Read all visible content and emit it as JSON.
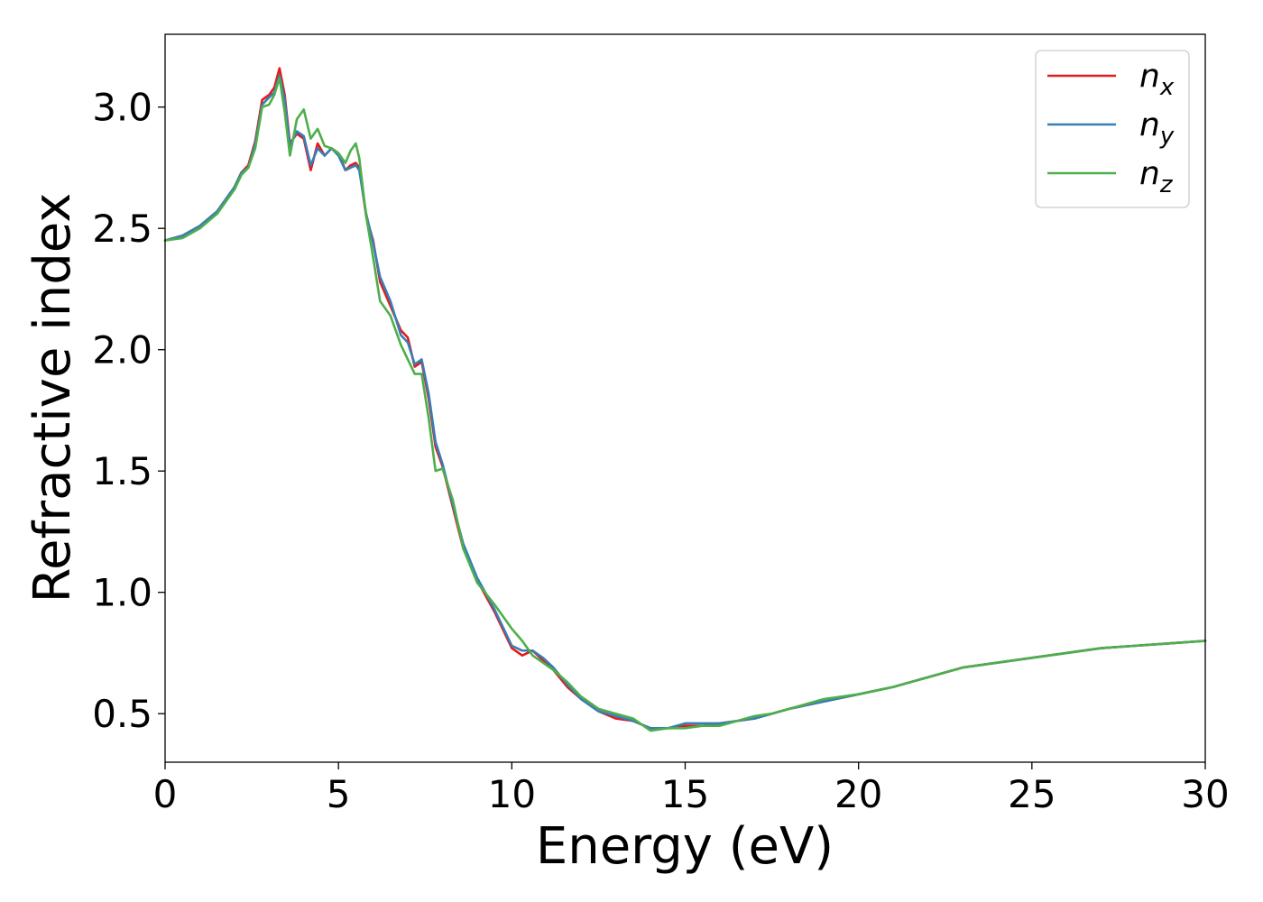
{
  "chart_data": {
    "type": "line",
    "title": "",
    "xlabel": "Energy (eV)",
    "ylabel": "Refractive index",
    "xlim": [
      0,
      30
    ],
    "ylim": [
      0.3,
      3.3
    ],
    "xticks": [
      "0",
      "5",
      "10",
      "15",
      "20",
      "25",
      "30"
    ],
    "yticks": [
      "0.5",
      "1.0",
      "1.5",
      "2.0",
      "2.5",
      "3.0"
    ],
    "grid": false,
    "legend_position": "top-right",
    "series": [
      {
        "name": "n_x",
        "label_main": "n",
        "label_sub": "x",
        "color": "#e41a1c",
        "x": [
          0,
          0.5,
          1,
          1.5,
          2,
          2.2,
          2.4,
          2.6,
          2.8,
          3.0,
          3.15,
          3.3,
          3.45,
          3.6,
          3.8,
          4.0,
          4.2,
          4.4,
          4.6,
          4.8,
          5.0,
          5.2,
          5.35,
          5.5,
          5.6,
          5.8,
          6.0,
          6.2,
          6.5,
          6.8,
          7.0,
          7.2,
          7.4,
          7.6,
          7.8,
          8.0,
          8.3,
          8.6,
          9.0,
          9.5,
          10.0,
          10.3,
          10.6,
          10.9,
          11.2,
          11.6,
          12.0,
          12.5,
          13.0,
          13.5,
          14.0,
          14.5,
          15.0,
          15.5,
          16.0,
          16.5,
          17.0,
          17.5,
          18.0,
          19.0,
          20.0,
          21.0,
          22.0,
          23.0,
          24.0,
          25.0,
          26.0,
          27.0,
          28.0,
          29.0,
          30.0
        ],
        "y": [
          2.45,
          2.47,
          2.51,
          2.57,
          2.67,
          2.73,
          2.76,
          2.86,
          3.03,
          3.05,
          3.08,
          3.16,
          3.05,
          2.85,
          2.89,
          2.87,
          2.74,
          2.85,
          2.8,
          2.83,
          2.81,
          2.74,
          2.76,
          2.77,
          2.75,
          2.55,
          2.45,
          2.28,
          2.18,
          2.08,
          2.05,
          1.93,
          1.95,
          1.8,
          1.6,
          1.52,
          1.35,
          1.18,
          1.05,
          0.92,
          0.77,
          0.74,
          0.76,
          0.72,
          0.68,
          0.61,
          0.56,
          0.51,
          0.48,
          0.47,
          0.44,
          0.44,
          0.45,
          0.45,
          0.46,
          0.47,
          0.48,
          0.5,
          0.52,
          0.55,
          0.58,
          0.61,
          0.65,
          0.69,
          0.71,
          0.73,
          0.75,
          0.77,
          0.78,
          0.79,
          0.8
        ]
      },
      {
        "name": "n_y",
        "label_main": "n",
        "label_sub": "y",
        "color": "#377eb8",
        "x": [
          0,
          0.5,
          1,
          1.5,
          2,
          2.2,
          2.4,
          2.6,
          2.8,
          3.0,
          3.15,
          3.3,
          3.45,
          3.6,
          3.8,
          4.0,
          4.2,
          4.4,
          4.6,
          4.8,
          5.0,
          5.2,
          5.35,
          5.5,
          5.6,
          5.8,
          6.0,
          6.2,
          6.5,
          6.8,
          7.0,
          7.2,
          7.4,
          7.6,
          7.8,
          8.0,
          8.3,
          8.6,
          9.0,
          9.5,
          10.0,
          10.3,
          10.6,
          10.9,
          11.2,
          11.6,
          12.0,
          12.5,
          13.0,
          13.5,
          14.0,
          14.5,
          15.0,
          15.5,
          16.0,
          16.5,
          17.0,
          17.5,
          18.0,
          19.0,
          20.0,
          21.0,
          22.0,
          23.0,
          24.0,
          25.0,
          26.0,
          27.0,
          28.0,
          29.0,
          30.0
        ],
        "y": [
          2.45,
          2.47,
          2.51,
          2.57,
          2.67,
          2.73,
          2.75,
          2.85,
          3.01,
          3.04,
          3.06,
          3.13,
          3.03,
          2.84,
          2.9,
          2.88,
          2.76,
          2.83,
          2.8,
          2.83,
          2.8,
          2.74,
          2.75,
          2.76,
          2.74,
          2.56,
          2.44,
          2.3,
          2.2,
          2.06,
          2.03,
          1.94,
          1.96,
          1.82,
          1.62,
          1.53,
          1.36,
          1.2,
          1.06,
          0.93,
          0.78,
          0.76,
          0.76,
          0.73,
          0.69,
          0.62,
          0.56,
          0.51,
          0.49,
          0.47,
          0.44,
          0.44,
          0.46,
          0.46,
          0.46,
          0.47,
          0.48,
          0.5,
          0.52,
          0.55,
          0.58,
          0.61,
          0.65,
          0.69,
          0.71,
          0.73,
          0.75,
          0.77,
          0.78,
          0.79,
          0.8
        ]
      },
      {
        "name": "n_z",
        "label_main": "n",
        "label_sub": "z",
        "color": "#4daf4a",
        "x": [
          0,
          0.5,
          1,
          1.5,
          2,
          2.2,
          2.4,
          2.6,
          2.8,
          3.0,
          3.15,
          3.3,
          3.45,
          3.6,
          3.8,
          4.0,
          4.2,
          4.4,
          4.6,
          4.8,
          5.0,
          5.2,
          5.35,
          5.5,
          5.6,
          5.8,
          6.0,
          6.2,
          6.5,
          6.8,
          7.0,
          7.2,
          7.4,
          7.6,
          7.8,
          8.0,
          8.3,
          8.6,
          9.0,
          9.5,
          10.0,
          10.3,
          10.6,
          10.9,
          11.2,
          11.6,
          12.0,
          12.5,
          13.0,
          13.5,
          14.0,
          14.5,
          15.0,
          15.5,
          16.0,
          16.5,
          17.0,
          17.5,
          18.0,
          19.0,
          20.0,
          21.0,
          22.0,
          23.0,
          24.0,
          25.0,
          26.0,
          27.0,
          28.0,
          29.0,
          30.0
        ],
        "y": [
          2.45,
          2.46,
          2.5,
          2.56,
          2.66,
          2.72,
          2.75,
          2.83,
          3.0,
          3.01,
          3.05,
          3.12,
          2.98,
          2.8,
          2.95,
          2.99,
          2.87,
          2.91,
          2.84,
          2.83,
          2.81,
          2.77,
          2.82,
          2.85,
          2.79,
          2.55,
          2.38,
          2.2,
          2.14,
          2.02,
          1.96,
          1.9,
          1.9,
          1.72,
          1.5,
          1.51,
          1.38,
          1.18,
          1.04,
          0.95,
          0.85,
          0.8,
          0.74,
          0.71,
          0.68,
          0.63,
          0.57,
          0.52,
          0.5,
          0.48,
          0.43,
          0.44,
          0.44,
          0.45,
          0.45,
          0.47,
          0.49,
          0.5,
          0.52,
          0.56,
          0.58,
          0.61,
          0.65,
          0.69,
          0.71,
          0.73,
          0.75,
          0.77,
          0.78,
          0.79,
          0.8
        ]
      }
    ]
  }
}
